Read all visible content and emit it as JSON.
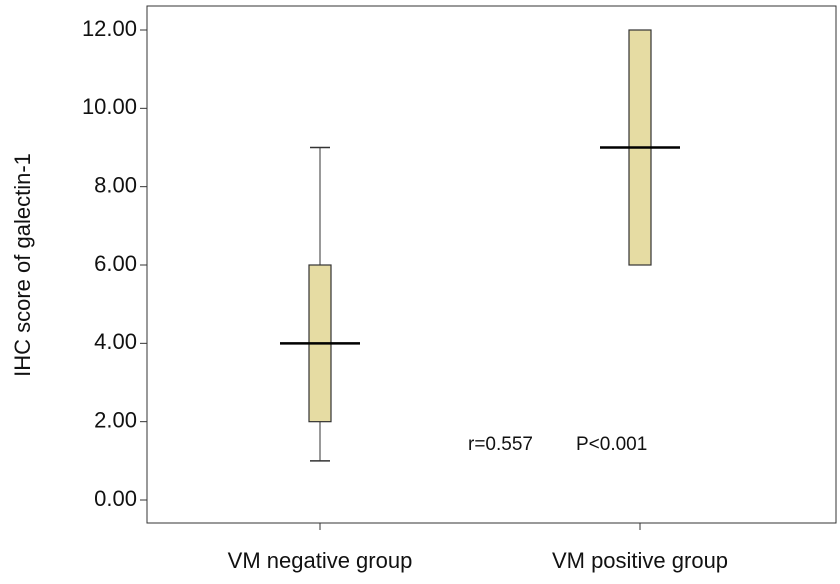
{
  "chart_data": {
    "type": "box",
    "ylabel": "IHC score of galectin-1",
    "ylim": [
      0,
      12
    ],
    "yticks": [
      "0.00",
      "2.00",
      "4.00",
      "6.00",
      "8.00",
      "10.00",
      "12.00"
    ],
    "categories": [
      "VM negative group",
      "VM positive group"
    ],
    "boxes": [
      {
        "category": "VM negative group",
        "min": 1,
        "q1": 2,
        "median": 4,
        "q3": 6,
        "max": 9
      },
      {
        "category": "VM positive group",
        "min": 6,
        "q1": 6,
        "median": 9,
        "q3": 12,
        "max": 12
      }
    ],
    "annotation": {
      "r": "r=0.557",
      "p": "P<0.001"
    },
    "box_color": "#e6dca3",
    "grid": false
  }
}
